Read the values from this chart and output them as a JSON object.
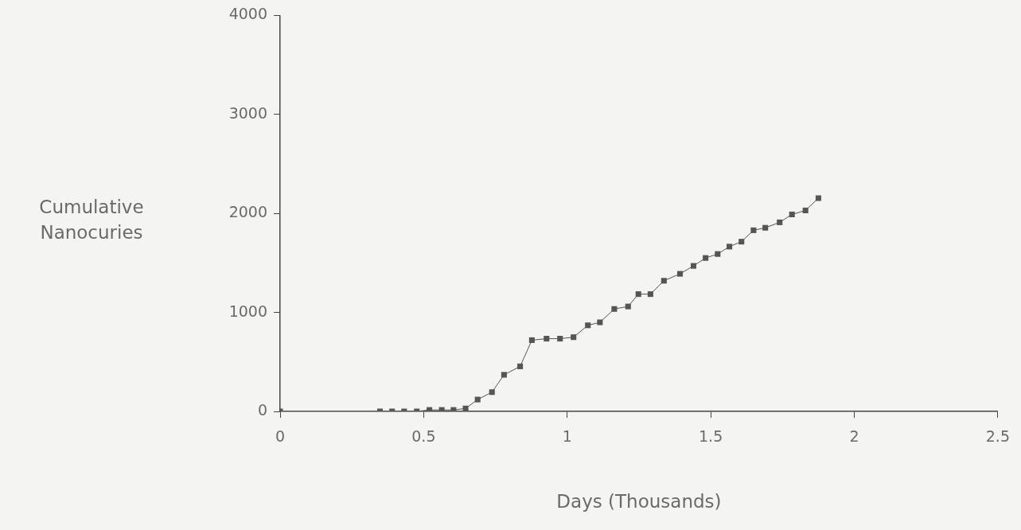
{
  "chart_data": {
    "type": "line",
    "xlabel": "Days (Thousands)",
    "ylabel": "Cumulative Nanocuries",
    "x": [
      0,
      0.348,
      0.39,
      0.432,
      0.476,
      0.52,
      0.563,
      0.604,
      0.646,
      0.688,
      0.738,
      0.78,
      0.836,
      0.877,
      0.928,
      0.975,
      1.022,
      1.072,
      1.114,
      1.164,
      1.212,
      1.248,
      1.29,
      1.337,
      1.393,
      1.44,
      1.482,
      1.524,
      1.565,
      1.607,
      1.649,
      1.69,
      1.74,
      1.783,
      1.83,
      1.875
    ],
    "values": [
      0,
      0,
      0,
      0,
      0,
      15,
      15,
      15,
      30,
      120,
      195,
      370,
      455,
      720,
      735,
      735,
      750,
      870,
      900,
      1035,
      1060,
      1185,
      1185,
      1320,
      1390,
      1470,
      1550,
      1590,
      1665,
      1715,
      1830,
      1855,
      1910,
      1990,
      2030,
      2155
    ],
    "color": "#555555",
    "marker": "square",
    "line_style": "solid",
    "xlim": [
      0,
      2.5
    ],
    "xticks": [
      0,
      0.5,
      1,
      1.5,
      2,
      2.5
    ],
    "ylim": [
      0,
      4000
    ],
    "yticks": [
      0,
      1000,
      2000,
      3000,
      4000
    ],
    "grid": false,
    "legend": false
  }
}
